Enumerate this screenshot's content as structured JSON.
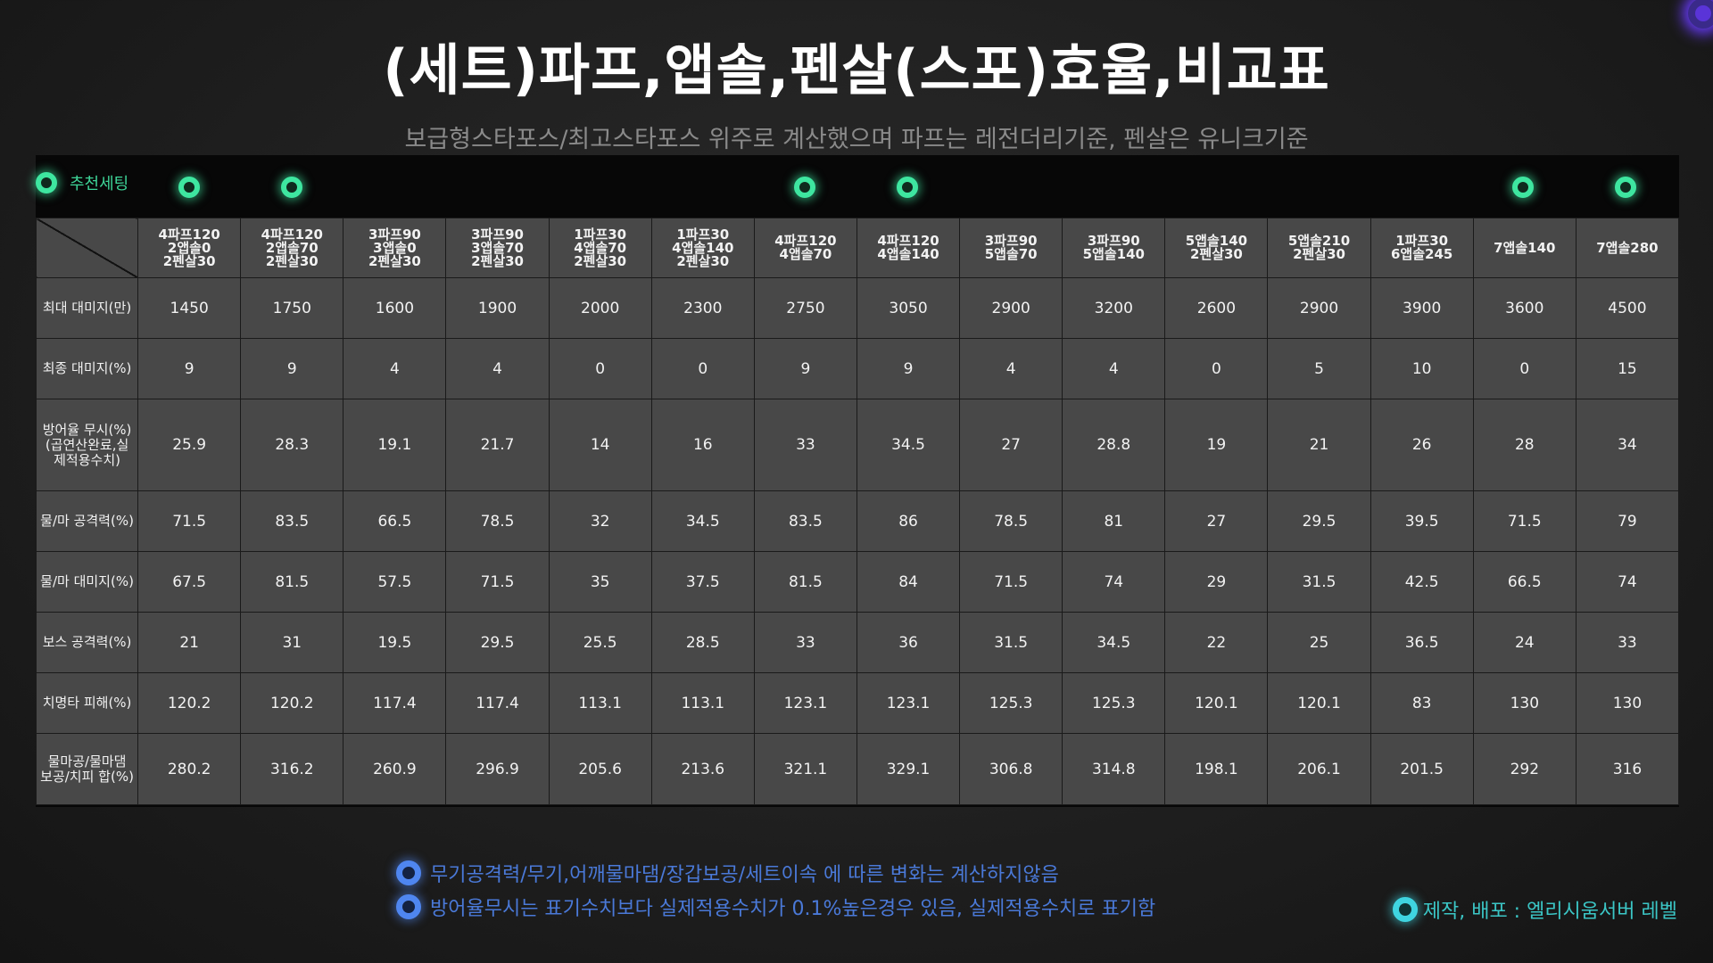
{
  "title": "(세트)파프,앱솔,펜살(스포)효율,비교표",
  "subtitle": "보급형스타포스/최고스타포스 위주로 계산했으며 파프는 레전더리기준, 펜살은 유니크기준",
  "legend_label": "추천세팅",
  "recommended_columns": [
    0,
    1,
    6,
    7,
    13,
    14
  ],
  "columns": [
    [
      "4파프120",
      "2앱솔0",
      "2펜살30"
    ],
    [
      "4파프120",
      "2앱솔70",
      "2펜살30"
    ],
    [
      "3파프90",
      "3앱솔0",
      "2펜살30"
    ],
    [
      "3파프90",
      "3앱솔70",
      "2펜살30"
    ],
    [
      "1파프30",
      "4앱솔70",
      "2펜살30"
    ],
    [
      "1파프30",
      "4앱솔140",
      "2펜살30"
    ],
    [
      "4파프120",
      "4앱솔70"
    ],
    [
      "4파프120",
      "4앱솔140"
    ],
    [
      "3파프90",
      "5앱솔70"
    ],
    [
      "3파프90",
      "5앱솔140"
    ],
    [
      "5앱솔140",
      "2펜살30"
    ],
    [
      "5앱솔210",
      "2펜살30"
    ],
    [
      "1파프30",
      "6앱솔245"
    ],
    [
      "7앱솔140"
    ],
    [
      "7앱솔280"
    ]
  ],
  "rows": [
    {
      "label": [
        "최대 대미지(만)"
      ],
      "values": [
        "1450",
        "1750",
        "1600",
        "1900",
        "2000",
        "2300",
        "2750",
        "3050",
        "2900",
        "3200",
        "2600",
        "2900",
        "3900",
        "3600",
        "4500"
      ]
    },
    {
      "label": [
        "최종 대미지(%)"
      ],
      "values": [
        "9",
        "9",
        "4",
        "4",
        "0",
        "0",
        "9",
        "9",
        "4",
        "4",
        "0",
        "5",
        "10",
        "0",
        "15"
      ]
    },
    {
      "label": [
        "방어율 무시(%)",
        "(곱연산완료,실",
        "제적용수치)"
      ],
      "values": [
        "25.9",
        "28.3",
        "19.1",
        "21.7",
        "14",
        "16",
        "33",
        "34.5",
        "27",
        "28.8",
        "19",
        "21",
        "26",
        "28",
        "34"
      ]
    },
    {
      "label": [
        "물/마 공격력(%)"
      ],
      "values": [
        "71.5",
        "83.5",
        "66.5",
        "78.5",
        "32",
        "34.5",
        "83.5",
        "86",
        "78.5",
        "81",
        "27",
        "29.5",
        "39.5",
        "71.5",
        "79"
      ]
    },
    {
      "label": [
        "물/마 대미지(%)"
      ],
      "values": [
        "67.5",
        "81.5",
        "57.5",
        "71.5",
        "35",
        "37.5",
        "81.5",
        "84",
        "71.5",
        "74",
        "29",
        "31.5",
        "42.5",
        "66.5",
        "74"
      ]
    },
    {
      "label": [
        "보스 공격력(%)"
      ],
      "values": [
        "21",
        "31",
        "19.5",
        "29.5",
        "25.5",
        "28.5",
        "33",
        "36",
        "31.5",
        "34.5",
        "22",
        "25",
        "36.5",
        "24",
        "33"
      ]
    },
    {
      "label": [
        "치명타 피해(%)"
      ],
      "values": [
        "120.2",
        "120.2",
        "117.4",
        "117.4",
        "113.1",
        "113.1",
        "123.1",
        "123.1",
        "125.3",
        "125.3",
        "120.1",
        "120.1",
        "83",
        "130",
        "130"
      ]
    },
    {
      "label": [
        "물마공/물마댐",
        "보공/치피 합(%)"
      ],
      "values": [
        "280.2",
        "316.2",
        "260.9",
        "296.9",
        "205.6",
        "213.6",
        "321.1",
        "329.1",
        "306.8",
        "314.8",
        "198.1",
        "206.1",
        "201.5",
        "292",
        "316"
      ]
    }
  ],
  "notes": [
    "무기공격력/무기,어깨물마댐/장갑보공/세트이속 에 따른 변화는 계산하지않음",
    "방어율무시는 표기수치보다 실제적용수치가 0.1%높은경우 있음, 실제적용수치로 표기함"
  ],
  "credit": "제작, 배포 : 엘리시움서버  레벨",
  "colors": {
    "recommend_dot": "#3ee6a0",
    "note_text": "#4a79d8",
    "credit_text": "#3bc6c6",
    "cell_bg": "#484848"
  }
}
